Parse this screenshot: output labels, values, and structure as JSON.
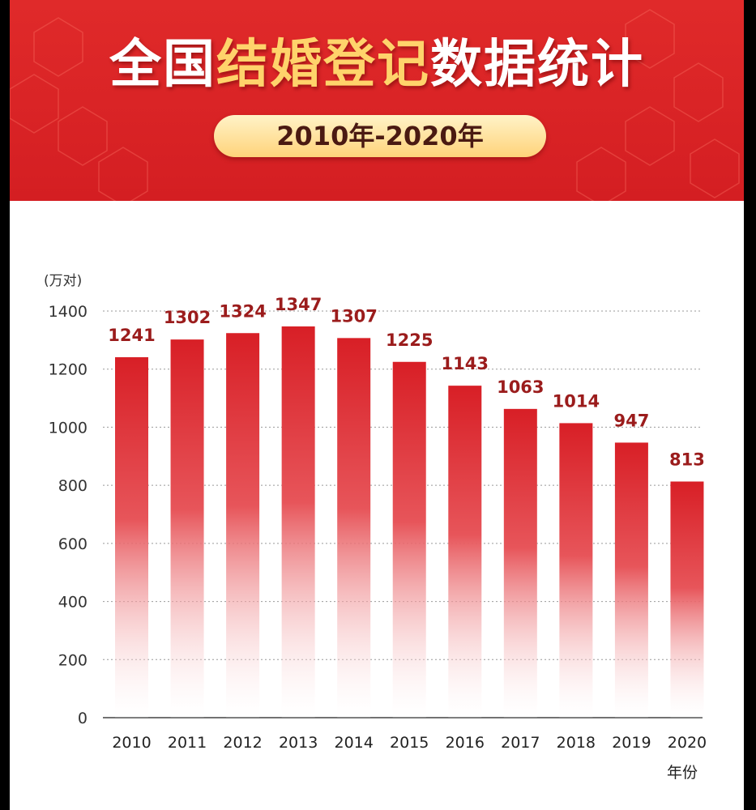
{
  "header": {
    "title_part1": "全国",
    "title_part2": "结婚登记",
    "title_part3": "数据统计",
    "period": "2010年-2020年"
  },
  "colors": {
    "header_red": "#d82424",
    "title_highlight": "#ffd36b",
    "bar_red": "#d81f26",
    "value_label": "#9b1c1c"
  },
  "chart_data": {
    "type": "bar",
    "categories": [
      "2010",
      "2011",
      "2012",
      "2013",
      "2014",
      "2015",
      "2016",
      "2017",
      "2018",
      "2019",
      "2020"
    ],
    "values": [
      1241,
      1302,
      1324,
      1347,
      1307,
      1225,
      1143,
      1063,
      1014,
      947,
      813
    ],
    "ylabel": "(万对)",
    "xlabel": "年份",
    "ylim": [
      0,
      1400
    ],
    "yticks": [
      "0",
      "200",
      "400",
      "600",
      "800",
      "1000",
      "1200",
      "1400"
    ],
    "grid": true
  }
}
